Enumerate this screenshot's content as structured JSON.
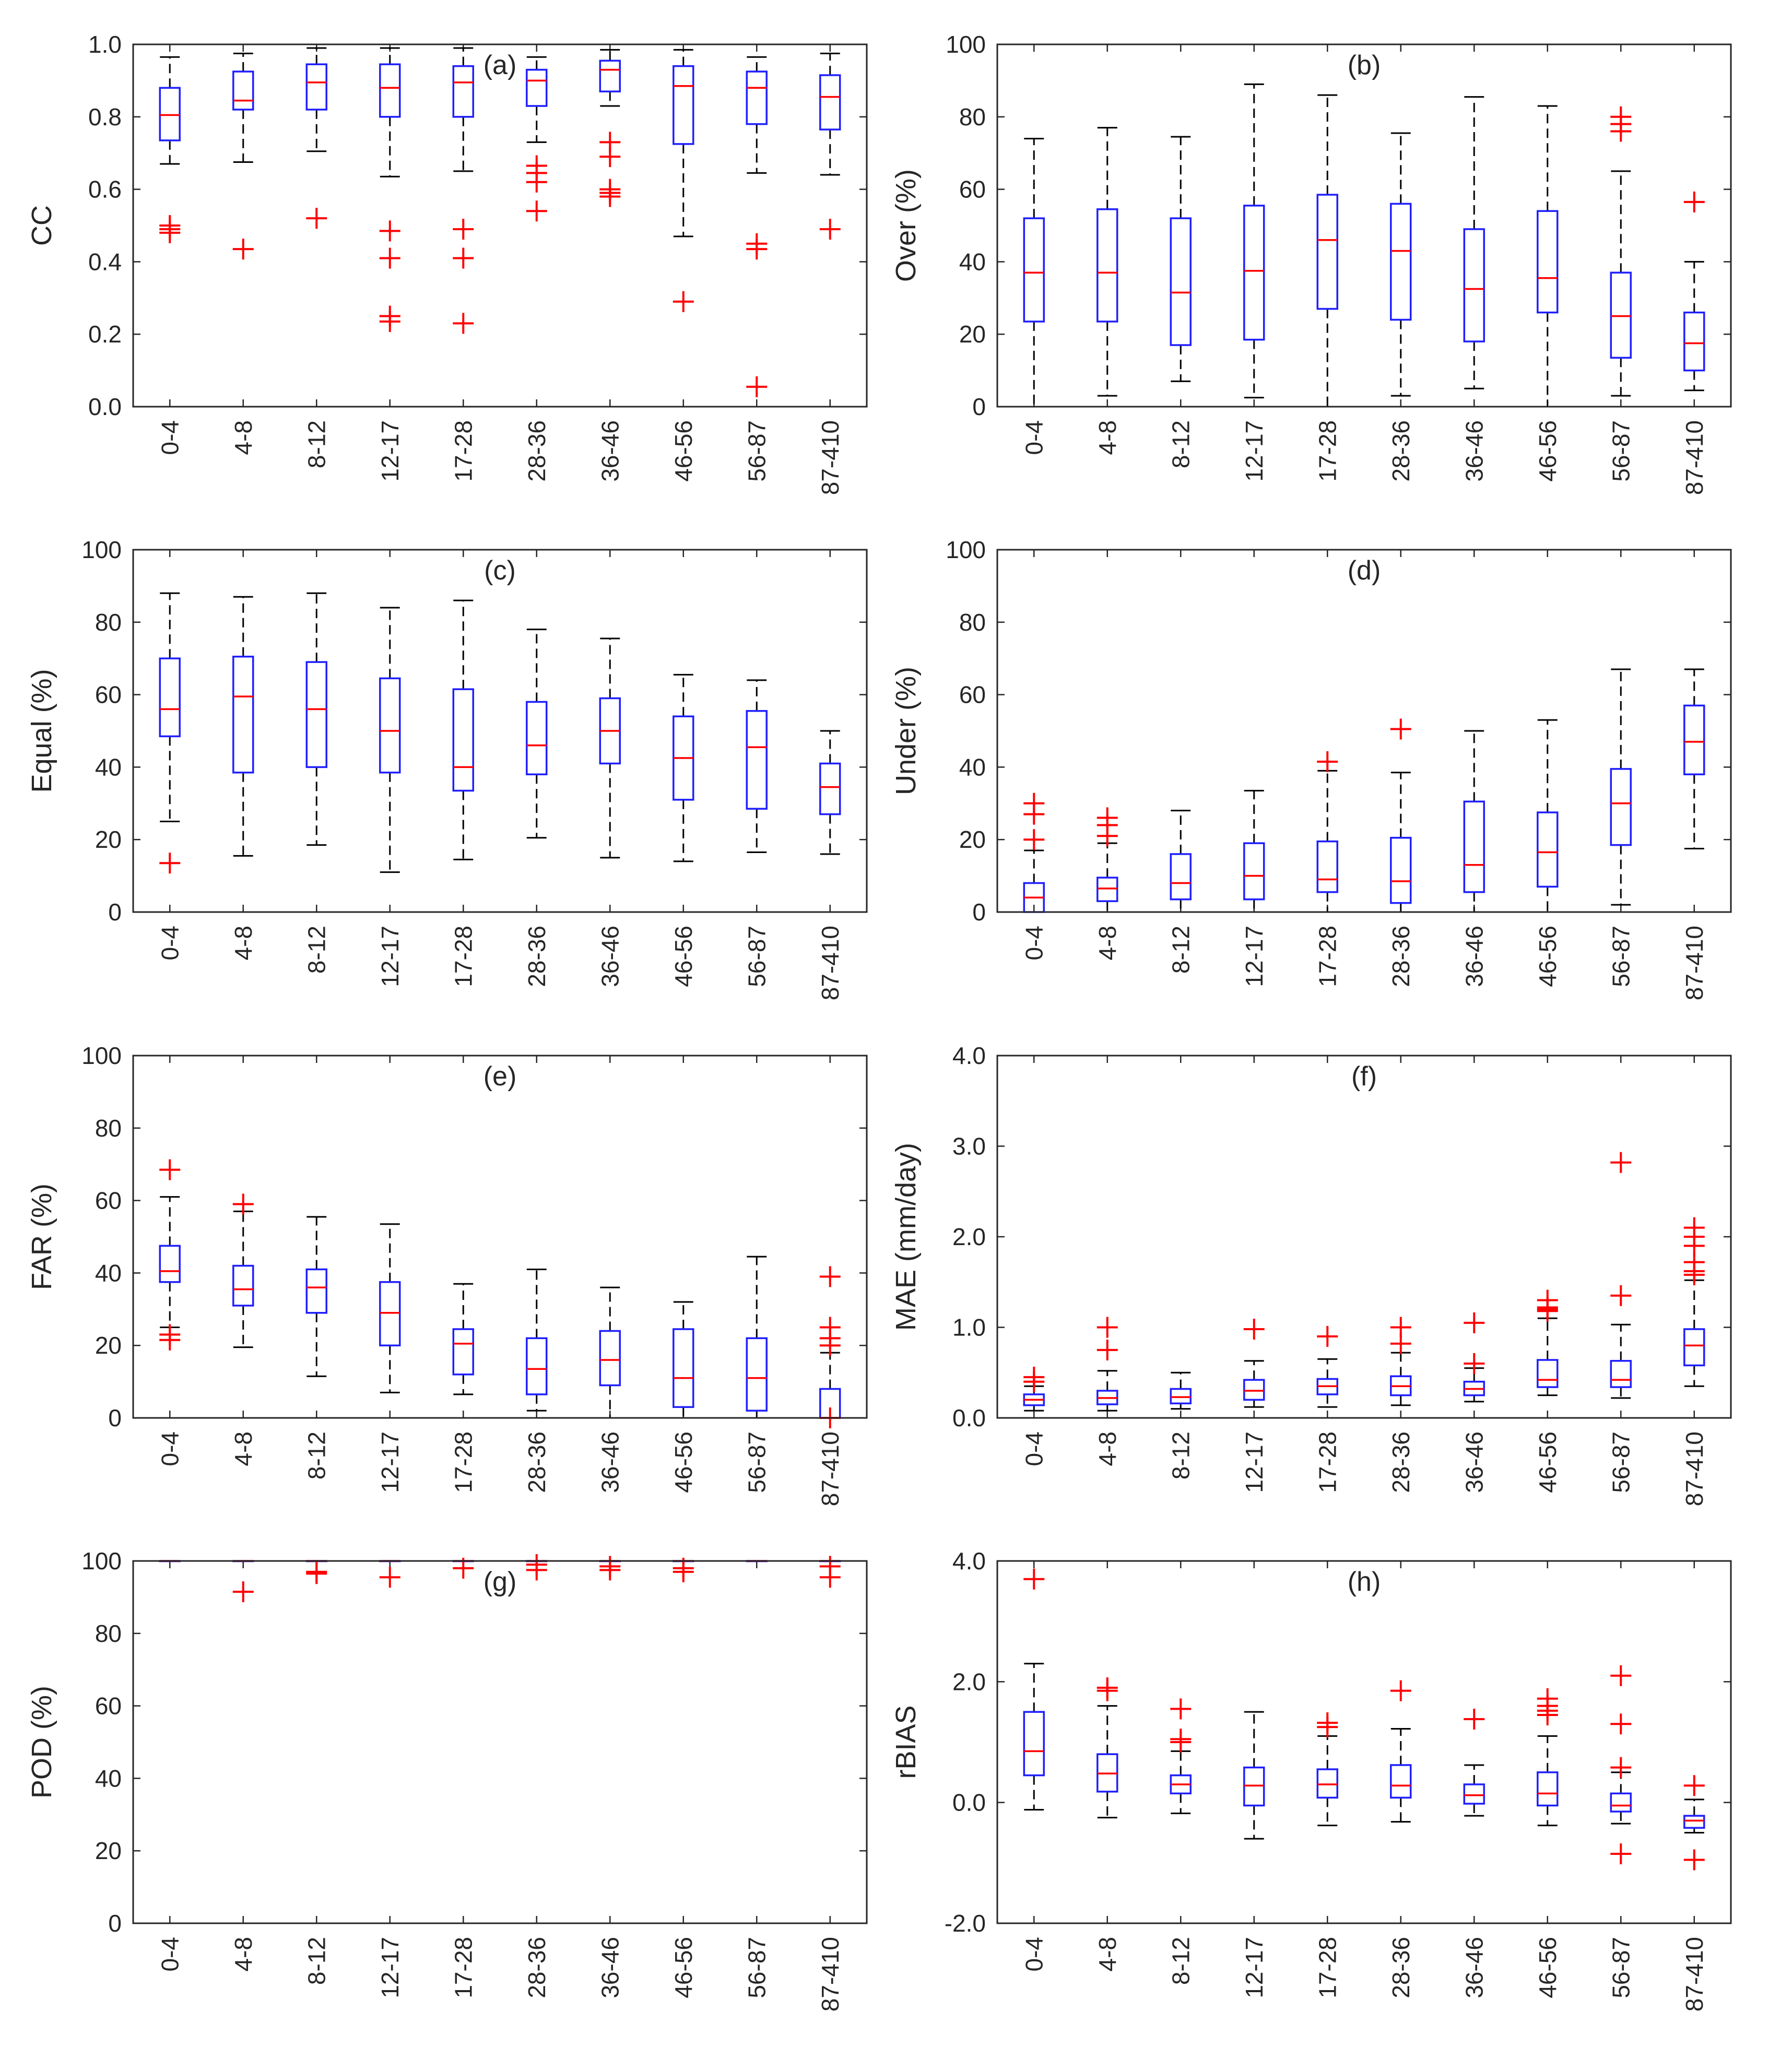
{
  "figure": {
    "title": ""
  },
  "style": {
    "box_color": "#1f1fff",
    "median_color": "#ff0000",
    "outlier_color": "#ff0000",
    "whisker_color": "#000000",
    "axis_color": "#262626"
  },
  "chart_data": [
    {
      "type": "box",
      "label": "(a)",
      "ylabel": "CC",
      "ylim": [
        0,
        1
      ],
      "yticks": [
        0,
        0.2,
        0.4,
        0.6,
        0.8,
        1.0
      ],
      "yticklabels": [
        "0.0",
        "0.2",
        "0.4",
        "0.6",
        "0.8",
        "1.0"
      ],
      "categories": [
        "0-4",
        "4-8",
        "8-12",
        "12-17",
        "17-28",
        "28-36",
        "36-46",
        "46-56",
        "56-87",
        "87-410"
      ],
      "boxes": [
        {
          "low": 0.67,
          "q1": 0.735,
          "median": 0.805,
          "q3": 0.88,
          "high": 0.965,
          "outliers": [
            0.48,
            0.49,
            0.5
          ]
        },
        {
          "low": 0.675,
          "q1": 0.82,
          "median": 0.845,
          "q3": 0.925,
          "high": 0.975,
          "outliers": [
            0.435
          ]
        },
        {
          "low": 0.705,
          "q1": 0.82,
          "median": 0.895,
          "q3": 0.945,
          "high": 0.99,
          "outliers": [
            0.52
          ]
        },
        {
          "low": 0.635,
          "q1": 0.8,
          "median": 0.88,
          "q3": 0.945,
          "high": 0.99,
          "outliers": [
            0.235,
            0.25,
            0.41,
            0.485
          ]
        },
        {
          "low": 0.65,
          "q1": 0.8,
          "median": 0.895,
          "q3": 0.94,
          "high": 0.99,
          "outliers": [
            0.23,
            0.41,
            0.49
          ]
        },
        {
          "low": 0.73,
          "q1": 0.83,
          "median": 0.9,
          "q3": 0.93,
          "high": 0.965,
          "outliers": [
            0.54,
            0.62,
            0.645,
            0.665
          ]
        },
        {
          "low": 0.83,
          "q1": 0.87,
          "median": 0.93,
          "q3": 0.955,
          "high": 0.985,
          "outliers": [
            0.58,
            0.59,
            0.6,
            0.69,
            0.73
          ]
        },
        {
          "low": 0.47,
          "q1": 0.725,
          "median": 0.885,
          "q3": 0.94,
          "high": 0.985,
          "outliers": [
            0.29
          ]
        },
        {
          "low": 0.645,
          "q1": 0.78,
          "median": 0.88,
          "q3": 0.925,
          "high": 0.965,
          "outliers": [
            0.055,
            0.435,
            0.45
          ]
        },
        {
          "low": 0.64,
          "q1": 0.765,
          "median": 0.855,
          "q3": 0.915,
          "high": 0.975,
          "outliers": [
            0.49
          ]
        }
      ]
    },
    {
      "type": "box",
      "label": "(b)",
      "ylabel": "Over (%)",
      "ylim": [
        0,
        100
      ],
      "yticks": [
        0,
        20,
        40,
        60,
        80,
        100
      ],
      "yticklabels": [
        "0",
        "20",
        "40",
        "60",
        "80",
        "100"
      ],
      "categories": [
        "0-4",
        "4-8",
        "8-12",
        "12-17",
        "17-28",
        "28-36",
        "36-46",
        "46-56",
        "56-87",
        "87-410"
      ],
      "boxes": [
        {
          "low": 0,
          "q1": 23.5,
          "median": 37,
          "q3": 52,
          "high": 74,
          "outliers": []
        },
        {
          "low": 3,
          "q1": 23.5,
          "median": 37,
          "q3": 54.5,
          "high": 77,
          "outliers": []
        },
        {
          "low": 7,
          "q1": 17,
          "median": 31.5,
          "q3": 52,
          "high": 74.5,
          "outliers": []
        },
        {
          "low": 2.5,
          "q1": 18.5,
          "median": 37.5,
          "q3": 55.5,
          "high": 89,
          "outliers": []
        },
        {
          "low": 0,
          "q1": 27,
          "median": 46,
          "q3": 58.5,
          "high": 86,
          "outliers": []
        },
        {
          "low": 3,
          "q1": 24,
          "median": 43,
          "q3": 56,
          "high": 75.5,
          "outliers": []
        },
        {
          "low": 5,
          "q1": 18,
          "median": 32.5,
          "q3": 49,
          "high": 85.5,
          "outliers": []
        },
        {
          "low": 0,
          "q1": 26,
          "median": 35.5,
          "q3": 54,
          "high": 83,
          "outliers": []
        },
        {
          "low": 3,
          "q1": 13.5,
          "median": 25,
          "q3": 37,
          "high": 65,
          "outliers": [
            76,
            78,
            80
          ]
        },
        {
          "low": 4.5,
          "q1": 10,
          "median": 17.5,
          "q3": 26,
          "high": 40,
          "outliers": [
            56.5
          ]
        }
      ]
    },
    {
      "type": "box",
      "label": "(c)",
      "ylabel": "Equal (%)",
      "ylim": [
        0,
        100
      ],
      "yticks": [
        0,
        20,
        40,
        60,
        80,
        100
      ],
      "yticklabels": [
        "0",
        "20",
        "40",
        "60",
        "80",
        "100"
      ],
      "categories": [
        "0-4",
        "4-8",
        "8-12",
        "12-17",
        "17-28",
        "28-36",
        "36-46",
        "46-56",
        "56-87",
        "87-410"
      ],
      "boxes": [
        {
          "low": 25,
          "q1": 48.5,
          "median": 56,
          "q3": 70,
          "high": 88,
          "outliers": [
            13.5
          ]
        },
        {
          "low": 15.5,
          "q1": 38.5,
          "median": 59.5,
          "q3": 70.5,
          "high": 87,
          "outliers": []
        },
        {
          "low": 18.5,
          "q1": 40,
          "median": 56,
          "q3": 69,
          "high": 88,
          "outliers": []
        },
        {
          "low": 11,
          "q1": 38.5,
          "median": 50,
          "q3": 64.5,
          "high": 84,
          "outliers": []
        },
        {
          "low": 14.5,
          "q1": 33.5,
          "median": 40,
          "q3": 61.5,
          "high": 86,
          "outliers": []
        },
        {
          "low": 20.5,
          "q1": 38,
          "median": 46,
          "q3": 58,
          "high": 78,
          "outliers": []
        },
        {
          "low": 15,
          "q1": 41,
          "median": 50,
          "q3": 59,
          "high": 75.5,
          "outliers": []
        },
        {
          "low": 14,
          "q1": 31,
          "median": 42.5,
          "q3": 54,
          "high": 65.5,
          "outliers": []
        },
        {
          "low": 16.5,
          "q1": 28.5,
          "median": 45.5,
          "q3": 55.5,
          "high": 64,
          "outliers": []
        },
        {
          "low": 16,
          "q1": 27,
          "median": 34.5,
          "q3": 41,
          "high": 50,
          "outliers": []
        }
      ]
    },
    {
      "type": "box",
      "label": "(d)",
      "ylabel": "Under (%)",
      "ylim": [
        0,
        100
      ],
      "yticks": [
        0,
        20,
        40,
        60,
        80,
        100
      ],
      "yticklabels": [
        "0",
        "20",
        "40",
        "60",
        "80",
        "100"
      ],
      "categories": [
        "0-4",
        "4-8",
        "8-12",
        "12-17",
        "17-28",
        "28-36",
        "36-46",
        "46-56",
        "56-87",
        "87-410"
      ],
      "boxes": [
        {
          "low": 0,
          "q1": 0,
          "median": 4,
          "q3": 8,
          "high": 17,
          "outliers": [
            20,
            27,
            30
          ]
        },
        {
          "low": 0,
          "q1": 3,
          "median": 6.5,
          "q3": 9.5,
          "high": 19,
          "outliers": [
            21,
            24,
            26
          ]
        },
        {
          "low": 0,
          "q1": 3.5,
          "median": 8,
          "q3": 16,
          "high": 28,
          "outliers": []
        },
        {
          "low": 0,
          "q1": 3.5,
          "median": 10,
          "q3": 19,
          "high": 33.5,
          "outliers": []
        },
        {
          "low": 0,
          "q1": 5.5,
          "median": 9,
          "q3": 19.5,
          "high": 39,
          "outliers": [
            41.5
          ]
        },
        {
          "low": 0,
          "q1": 2.5,
          "median": 8.5,
          "q3": 20.5,
          "high": 38.5,
          "outliers": [
            50.5
          ]
        },
        {
          "low": 0,
          "q1": 5.5,
          "median": 13,
          "q3": 30.5,
          "high": 50,
          "outliers": []
        },
        {
          "low": 0,
          "q1": 7,
          "median": 16.5,
          "q3": 27.5,
          "high": 53,
          "outliers": []
        },
        {
          "low": 2,
          "q1": 18.5,
          "median": 30,
          "q3": 39.5,
          "high": 67,
          "outliers": []
        },
        {
          "low": 17.5,
          "q1": 38,
          "median": 47,
          "q3": 57,
          "high": 67,
          "outliers": []
        }
      ]
    },
    {
      "type": "box",
      "label": "(e)",
      "ylabel": "FAR (%)",
      "ylim": [
        0,
        100
      ],
      "yticks": [
        0,
        20,
        40,
        60,
        80,
        100
      ],
      "yticklabels": [
        "0",
        "20",
        "40",
        "60",
        "80",
        "100"
      ],
      "categories": [
        "0-4",
        "4-8",
        "8-12",
        "12-17",
        "17-28",
        "28-36",
        "36-46",
        "46-56",
        "56-87",
        "87-410"
      ],
      "boxes": [
        {
          "low": 25,
          "q1": 37.5,
          "median": 40.5,
          "q3": 47.5,
          "high": 61,
          "outliers": [
            21.5,
            23,
            68.5
          ]
        },
        {
          "low": 19.5,
          "q1": 31,
          "median": 35.5,
          "q3": 42,
          "high": 57,
          "outliers": [
            59
          ]
        },
        {
          "low": 11.5,
          "q1": 29,
          "median": 36,
          "q3": 41,
          "high": 55.5,
          "outliers": []
        },
        {
          "low": 7,
          "q1": 20,
          "median": 29,
          "q3": 37.5,
          "high": 53.5,
          "outliers": []
        },
        {
          "low": 6.5,
          "q1": 12,
          "median": 20.5,
          "q3": 24.5,
          "high": 37,
          "outliers": []
        },
        {
          "low": 2,
          "q1": 6.5,
          "median": 13.5,
          "q3": 22,
          "high": 41,
          "outliers": []
        },
        {
          "low": 0,
          "q1": 9,
          "median": 16,
          "q3": 24,
          "high": 36,
          "outliers": []
        },
        {
          "low": 0,
          "q1": 3,
          "median": 11,
          "q3": 24.5,
          "high": 32,
          "outliers": []
        },
        {
          "low": 0,
          "q1": 2,
          "median": 11,
          "q3": 22,
          "high": 44.5,
          "outliers": []
        },
        {
          "low": 0,
          "q1": 0,
          "median": 0,
          "q3": 8,
          "high": 18,
          "outliers": [
            0,
            20,
            22,
            25,
            39
          ]
        }
      ]
    },
    {
      "type": "box",
      "label": "(f)",
      "ylabel": "MAE (mm/day)",
      "ylim": [
        0,
        4
      ],
      "yticks": [
        0,
        1,
        2,
        3,
        4
      ],
      "yticklabels": [
        "0.0",
        "1.0",
        "2.0",
        "3.0",
        "4.0"
      ],
      "categories": [
        "0-4",
        "4-8",
        "8-12",
        "12-17",
        "17-28",
        "28-36",
        "36-46",
        "46-56",
        "56-87",
        "87-410"
      ],
      "boxes": [
        {
          "low": 0.08,
          "q1": 0.14,
          "median": 0.2,
          "q3": 0.26,
          "high": 0.35,
          "outliers": [
            0.4,
            0.45
          ]
        },
        {
          "low": 0.08,
          "q1": 0.15,
          "median": 0.22,
          "q3": 0.3,
          "high": 0.52,
          "outliers": [
            0.75,
            1.0
          ]
        },
        {
          "low": 0.1,
          "q1": 0.16,
          "median": 0.23,
          "q3": 0.32,
          "high": 0.5,
          "outliers": []
        },
        {
          "low": 0.12,
          "q1": 0.2,
          "median": 0.3,
          "q3": 0.42,
          "high": 0.63,
          "outliers": [
            0.98
          ]
        },
        {
          "low": 0.12,
          "q1": 0.26,
          "median": 0.35,
          "q3": 0.43,
          "high": 0.65,
          "outliers": [
            0.9
          ]
        },
        {
          "low": 0.14,
          "q1": 0.25,
          "median": 0.35,
          "q3": 0.46,
          "high": 0.72,
          "outliers": [
            0.82,
            1.0
          ]
        },
        {
          "low": 0.18,
          "q1": 0.25,
          "median": 0.32,
          "q3": 0.4,
          "high": 0.55,
          "outliers": [
            0.6,
            1.05
          ]
        },
        {
          "low": 0.25,
          "q1": 0.34,
          "median": 0.42,
          "q3": 0.64,
          "high": 1.1,
          "outliers": [
            1.18,
            1.2,
            1.22,
            1.3
          ]
        },
        {
          "low": 0.22,
          "q1": 0.34,
          "median": 0.42,
          "q3": 0.63,
          "high": 1.03,
          "outliers": [
            1.35,
            2.82
          ]
        },
        {
          "low": 0.35,
          "q1": 0.58,
          "median": 0.8,
          "q3": 0.98,
          "high": 1.52,
          "outliers": [
            1.58,
            1.62,
            1.72,
            1.9,
            2.0,
            2.1
          ]
        }
      ]
    },
    {
      "type": "box",
      "label": "(g)",
      "ylabel": "POD (%)",
      "ylim": [
        0,
        100
      ],
      "yticks": [
        0,
        20,
        40,
        60,
        80,
        100
      ],
      "yticklabels": [
        "0",
        "20",
        "40",
        "60",
        "80",
        "100"
      ],
      "categories": [
        "0-4",
        "4-8",
        "8-12",
        "12-17",
        "17-28",
        "28-36",
        "36-46",
        "46-56",
        "56-87",
        "87-410"
      ],
      "boxes": [
        {
          "low": 100,
          "q1": 100,
          "median": 100,
          "q3": 100,
          "high": 100,
          "outliers": []
        },
        {
          "low": 100,
          "q1": 100,
          "median": 100,
          "q3": 100,
          "high": 100,
          "outliers": [
            91.5
          ]
        },
        {
          "low": 100,
          "q1": 100,
          "median": 100,
          "q3": 100,
          "high": 100,
          "outliers": [
            96.5,
            97
          ]
        },
        {
          "low": 100,
          "q1": 100,
          "median": 100,
          "q3": 100,
          "high": 100,
          "outliers": [
            95.5
          ]
        },
        {
          "low": 100,
          "q1": 100,
          "median": 100,
          "q3": 100,
          "high": 100,
          "outliers": [
            98
          ]
        },
        {
          "low": 100,
          "q1": 100,
          "median": 100,
          "q3": 100,
          "high": 100,
          "outliers": [
            97.5,
            99
          ]
        },
        {
          "low": 100,
          "q1": 100,
          "median": 100,
          "q3": 100,
          "high": 100,
          "outliers": [
            97.5,
            98.5
          ]
        },
        {
          "low": 100,
          "q1": 100,
          "median": 100,
          "q3": 100,
          "high": 100,
          "outliers": [
            97,
            98
          ]
        },
        {
          "low": 100,
          "q1": 100,
          "median": 100,
          "q3": 100,
          "high": 100,
          "outliers": []
        },
        {
          "low": 100,
          "q1": 100,
          "median": 100,
          "q3": 100,
          "high": 100,
          "outliers": [
            95.5,
            98.5
          ]
        }
      ]
    },
    {
      "type": "box",
      "label": "(h)",
      "ylabel": "rBIAS",
      "ylim": [
        -2,
        4
      ],
      "yticks": [
        -2,
        0,
        2,
        4
      ],
      "yticklabels": [
        "-2.0",
        "0.0",
        "2.0",
        "4.0"
      ],
      "categories": [
        "0-4",
        "4-8",
        "8-12",
        "12-17",
        "17-28",
        "28-36",
        "36-46",
        "46-56",
        "56-87",
        "87-410"
      ],
      "boxes": [
        {
          "low": -0.12,
          "q1": 0.45,
          "median": 0.85,
          "q3": 1.5,
          "high": 2.3,
          "outliers": [
            3.7
          ]
        },
        {
          "low": -0.25,
          "q1": 0.18,
          "median": 0.48,
          "q3": 0.8,
          "high": 1.6,
          "outliers": [
            1.85,
            1.9
          ]
        },
        {
          "low": -0.18,
          "q1": 0.15,
          "median": 0.3,
          "q3": 0.45,
          "high": 0.85,
          "outliers": [
            1.0,
            1.05,
            1.55
          ]
        },
        {
          "low": -0.6,
          "q1": -0.05,
          "median": 0.28,
          "q3": 0.58,
          "high": 1.5,
          "outliers": []
        },
        {
          "low": -0.38,
          "q1": 0.08,
          "median": 0.3,
          "q3": 0.55,
          "high": 1.1,
          "outliers": [
            1.25,
            1.32
          ]
        },
        {
          "low": -0.32,
          "q1": 0.08,
          "median": 0.28,
          "q3": 0.62,
          "high": 1.22,
          "outliers": [
            1.85
          ]
        },
        {
          "low": -0.22,
          "q1": -0.02,
          "median": 0.12,
          "q3": 0.3,
          "high": 0.62,
          "outliers": [
            1.38
          ]
        },
        {
          "low": -0.38,
          "q1": -0.05,
          "median": 0.15,
          "q3": 0.5,
          "high": 1.1,
          "outliers": [
            1.45,
            1.52,
            1.6,
            1.72
          ]
        },
        {
          "low": -0.35,
          "q1": -0.15,
          "median": -0.05,
          "q3": 0.15,
          "high": 0.5,
          "outliers": [
            -0.85,
            0.58,
            1.3,
            2.1
          ]
        },
        {
          "low": -0.5,
          "q1": -0.42,
          "median": -0.3,
          "q3": -0.22,
          "high": 0.05,
          "outliers": [
            -0.95,
            0.28
          ]
        }
      ]
    }
  ]
}
